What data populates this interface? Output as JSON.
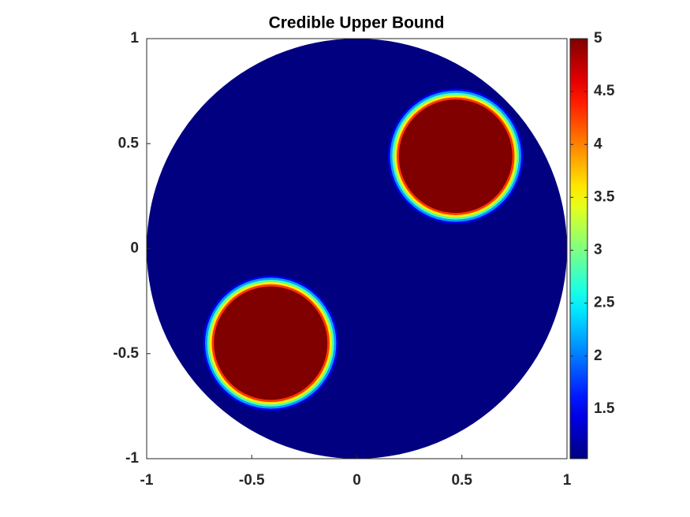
{
  "chart_data": {
    "type": "field",
    "title": "Credible Upper Bound",
    "colormap": "jet",
    "xlim": [
      -1,
      1
    ],
    "ylim": [
      -1,
      1
    ],
    "xticks": [
      -1,
      -0.5,
      0,
      0.5,
      1
    ],
    "yticks": [
      -1,
      -0.5,
      0,
      0.5,
      1
    ],
    "clim": [
      1.03,
      5
    ],
    "cticks": [
      1.5,
      2,
      2.5,
      3,
      3.5,
      4,
      4.5,
      5
    ],
    "background": 1.03,
    "regions": [
      {
        "x": 0.47,
        "y": 0.44,
        "r": 0.27,
        "value": 5
      },
      {
        "x": -0.41,
        "y": -0.45,
        "r": 0.27,
        "value": 5
      }
    ]
  }
}
